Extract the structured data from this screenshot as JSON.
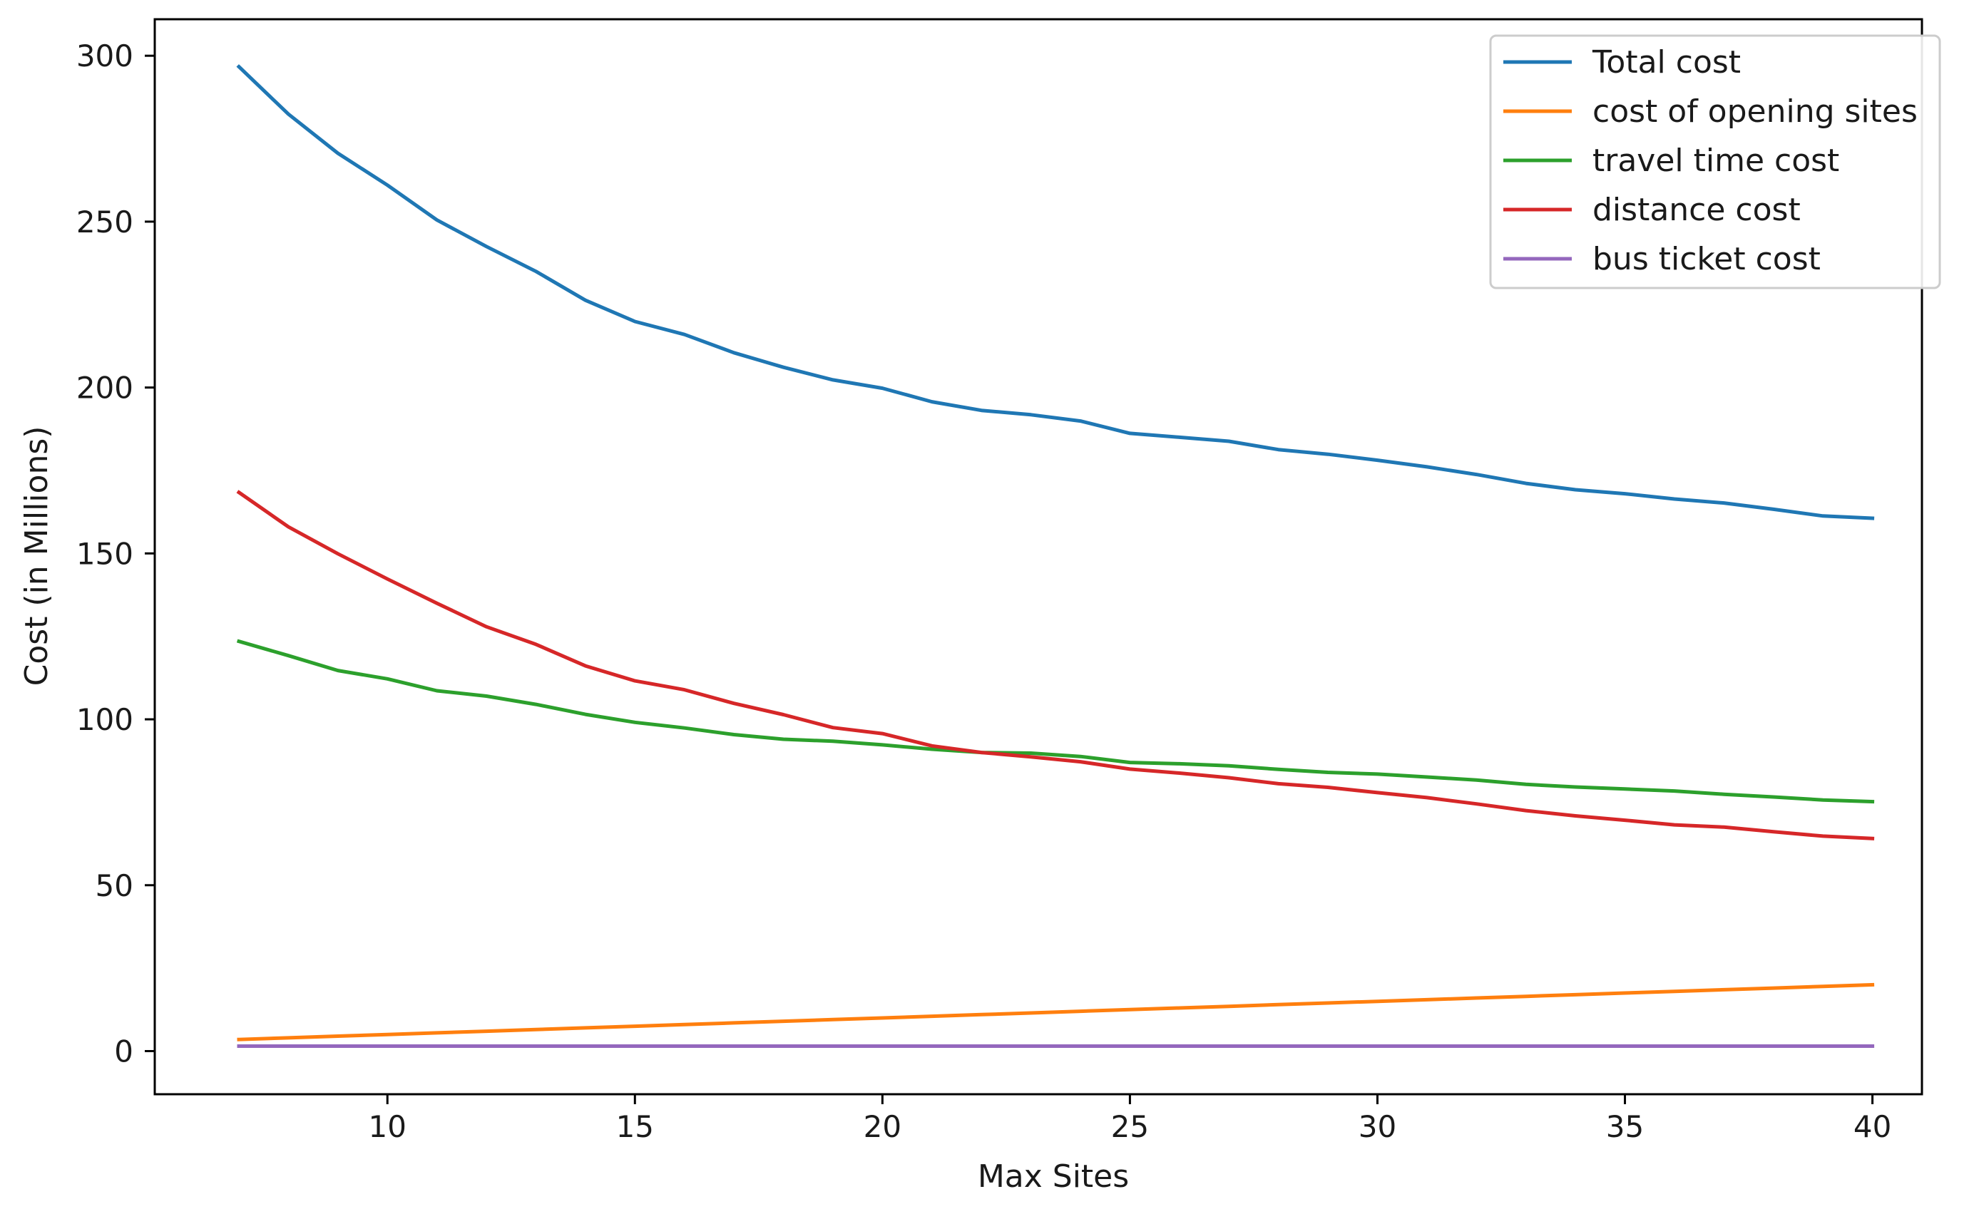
{
  "chart_data": {
    "type": "line",
    "xlabel": "Max Sites",
    "ylabel": "Cost (in Millions)",
    "xlim": [
      5.3,
      41.0
    ],
    "ylim": [
      -13.0,
      311.0
    ],
    "xticks": [
      10,
      15,
      20,
      25,
      30,
      35,
      40
    ],
    "yticks": [
      0,
      50,
      100,
      150,
      200,
      250,
      300
    ],
    "grid": false,
    "legend_position": "top-right",
    "x": [
      7,
      8,
      9,
      10,
      11,
      12,
      13,
      14,
      15,
      16,
      17,
      18,
      19,
      20,
      21,
      22,
      23,
      24,
      25,
      26,
      27,
      28,
      29,
      30,
      31,
      32,
      33,
      34,
      35,
      36,
      37,
      38,
      39,
      40
    ],
    "series": [
      {
        "name": "Total cost",
        "color": "#1f77b4",
        "values": [
          296.7,
          282.4,
          270.6,
          261.0,
          250.5,
          242.5,
          235.0,
          226.3,
          219.9,
          216.0,
          210.5,
          206.1,
          202.3,
          199.8,
          195.7,
          193.1,
          191.8,
          189.9,
          186.2,
          185.0,
          183.8,
          181.3,
          179.9,
          178.1,
          176.1,
          173.8,
          171.1,
          169.2,
          168.0,
          166.4,
          165.2,
          163.3,
          161.3,
          160.6
        ]
      },
      {
        "name": "cost of opening sites",
        "color": "#ff7f0e",
        "values": [
          3.5,
          4.0,
          4.5,
          5.0,
          5.5,
          6.0,
          6.5,
          7.0,
          7.5,
          8.0,
          8.5,
          9.0,
          9.5,
          10.0,
          10.5,
          11.0,
          11.5,
          12.0,
          12.5,
          13.0,
          13.5,
          14.0,
          14.5,
          15.0,
          15.5,
          16.0,
          16.5,
          17.0,
          17.5,
          18.0,
          18.5,
          19.0,
          19.5,
          20.0
        ]
      },
      {
        "name": "travel time cost",
        "color": "#2ca02c",
        "values": [
          123.5,
          119.2,
          114.7,
          112.2,
          108.6,
          107.0,
          104.5,
          101.5,
          99.1,
          97.4,
          95.4,
          94.0,
          93.4,
          92.3,
          91.0,
          90.0,
          89.8,
          88.8,
          87.0,
          86.6,
          86.0,
          84.9,
          84.0,
          83.5,
          82.6,
          81.7,
          80.4,
          79.6,
          79.0,
          78.4,
          77.4,
          76.6,
          75.7,
          75.2
        ]
      },
      {
        "name": "distance cost",
        "color": "#d62728",
        "values": [
          168.4,
          158.0,
          149.9,
          142.3,
          135.0,
          127.9,
          122.6,
          116.1,
          111.6,
          108.9,
          104.8,
          101.4,
          97.5,
          95.7,
          92.0,
          90.0,
          88.7,
          87.2,
          85.0,
          83.8,
          82.4,
          80.6,
          79.5,
          77.9,
          76.4,
          74.5,
          72.5,
          70.9,
          69.6,
          68.2,
          67.5,
          66.1,
          64.8,
          64.1
        ]
      },
      {
        "name": "bus ticket cost",
        "color": "#9467bd",
        "values": [
          1.5,
          1.5,
          1.5,
          1.5,
          1.5,
          1.5,
          1.5,
          1.5,
          1.5,
          1.5,
          1.5,
          1.5,
          1.5,
          1.5,
          1.5,
          1.5,
          1.5,
          1.5,
          1.5,
          1.5,
          1.5,
          1.5,
          1.5,
          1.5,
          1.5,
          1.5,
          1.5,
          1.5,
          1.5,
          1.5,
          1.5,
          1.5,
          1.5,
          1.5
        ]
      }
    ]
  }
}
